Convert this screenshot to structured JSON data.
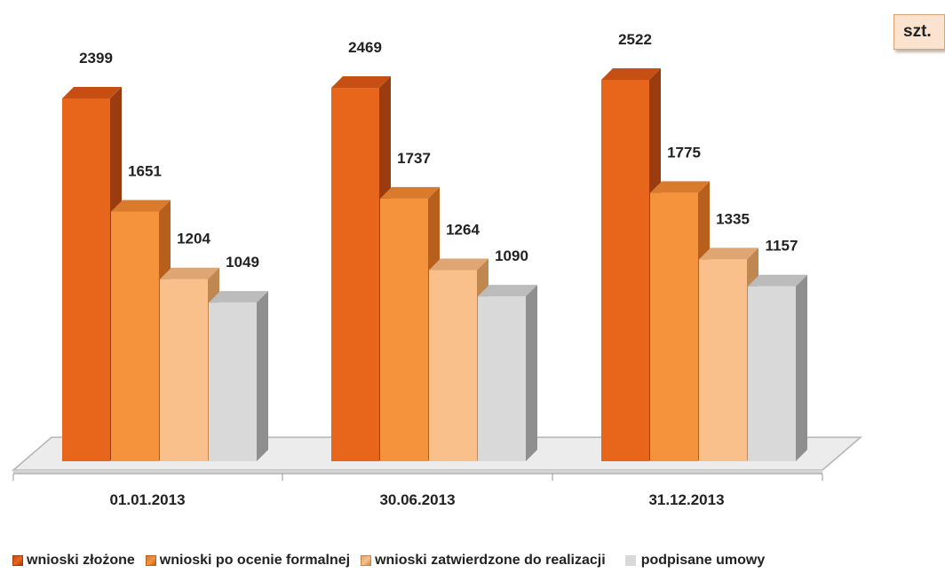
{
  "unit_label": "szt.",
  "colors": {
    "series": [
      "#e8661c",
      "#f5923c",
      "#f9c08c",
      "#d9d9d9"
    ],
    "series_side": [
      "#9a3c10",
      "#b6601c",
      "#c08850",
      "#8f8f8f"
    ],
    "series_top": [
      "#c65014",
      "#d97a2c",
      "#dfa573",
      "#bcbcbc"
    ],
    "floor": "#ececec",
    "floor_edge": "#b3b3b3",
    "label_text": "#222222"
  },
  "chart_data": {
    "type": "bar",
    "title": "",
    "xlabel": "",
    "ylabel": "",
    "ylim": [
      0,
      2700
    ],
    "grid": false,
    "legend_position": "bottom",
    "categories": [
      "01.01.2013",
      "30.06.2013",
      "31.12.2013"
    ],
    "series": [
      {
        "name": "wnioski złożone",
        "values": [
          2399,
          2469,
          2522
        ]
      },
      {
        "name": "wnioski po ocenie formalnej",
        "values": [
          1651,
          1737,
          1775
        ]
      },
      {
        "name": "wnioski zatwierdzone do realizacji",
        "values": [
          1204,
          1264,
          1335
        ]
      },
      {
        "name": "podpisane umowy",
        "values": [
          1049,
          1090,
          1157
        ]
      }
    ]
  }
}
